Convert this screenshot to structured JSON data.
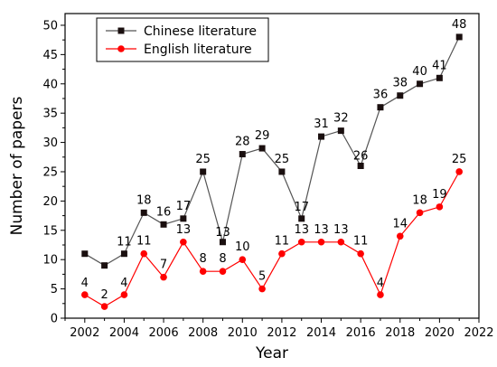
{
  "chart_data": {
    "type": "line",
    "title": "",
    "xlabel": "Year",
    "ylabel": "Number of papers",
    "xlim": [
      2001,
      2022
    ],
    "ylim": [
      0,
      52
    ],
    "x_ticks": [
      2002,
      2004,
      2006,
      2008,
      2010,
      2012,
      2014,
      2016,
      2018,
      2020,
      2022
    ],
    "y_ticks": [
      0,
      5,
      10,
      15,
      20,
      25,
      30,
      35,
      40,
      45,
      50
    ],
    "grid": false,
    "legend_position": "top-left",
    "series": [
      {
        "name": "Chinese literature",
        "color": "#000000",
        "line_color": "#555555",
        "marker": "square",
        "x": [
          2002,
          2003,
          2004,
          2005,
          2006,
          2007,
          2008,
          2009,
          2010,
          2011,
          2012,
          2013,
          2014,
          2015,
          2016,
          2017,
          2018,
          2019,
          2020,
          2021
        ],
        "values": [
          11,
          9,
          11,
          18,
          16,
          17,
          25,
          13,
          28,
          29,
          25,
          17,
          31,
          32,
          26,
          36,
          38,
          40,
          41,
          48
        ],
        "labels": [
          "",
          "",
          "11",
          "18",
          "16",
          "17",
          "25",
          "13",
          "28",
          "29",
          "25",
          "17",
          "31",
          "32",
          "26",
          "36",
          "38",
          "40",
          "41",
          "48"
        ]
      },
      {
        "name": "English literature",
        "color": "#ff0000",
        "line_color": "#ff0000",
        "marker": "circle",
        "x": [
          2002,
          2003,
          2004,
          2005,
          2006,
          2007,
          2008,
          2009,
          2010,
          2011,
          2012,
          2013,
          2014,
          2015,
          2016,
          2017,
          2018,
          2019,
          2020,
          2021
        ],
        "values": [
          4,
          2,
          4,
          11,
          7,
          13,
          8,
          8,
          10,
          5,
          11,
          13,
          13,
          13,
          11,
          4,
          14,
          18,
          19,
          25
        ],
        "labels": [
          "4",
          "2",
          "4",
          "11",
          "7",
          "13",
          "8",
          "8",
          "10",
          "5",
          "11",
          "13",
          "13",
          "13",
          "11",
          "4",
          "14",
          "18",
          "19",
          "25"
        ]
      }
    ]
  }
}
